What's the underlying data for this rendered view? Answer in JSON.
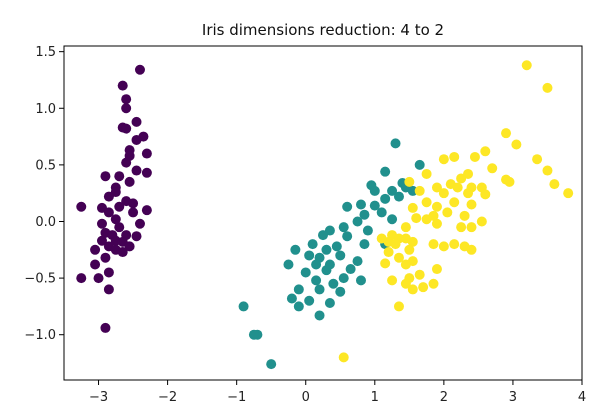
{
  "chart_data": {
    "type": "scatter",
    "title": "Iris dimensions reduction: 4 to 2",
    "xlabel": "",
    "ylabel": "",
    "xlim": [
      -3.5,
      4.0
    ],
    "ylim": [
      -1.4,
      1.55
    ],
    "xticks": [
      -3,
      -2,
      -1,
      0,
      1,
      2,
      3,
      4
    ],
    "xtick_labels": [
      "−3",
      "−2",
      "−1",
      "0",
      "1",
      "2",
      "3",
      "4"
    ],
    "yticks": [
      -1.0,
      -0.5,
      0.0,
      0.5,
      1.0,
      1.5
    ],
    "ytick_labels": [
      "−1.0",
      "−0.5",
      "0.0",
      "0.5",
      "1.0",
      "1.5"
    ],
    "grid": false,
    "legend": "none",
    "series": [
      {
        "color": "#440154",
        "points": [
          [
            -2.4,
            1.34
          ],
          [
            -2.65,
            1.2
          ],
          [
            -2.6,
            1.08
          ],
          [
            -2.6,
            1.0
          ],
          [
            -2.45,
            0.88
          ],
          [
            -2.65,
            0.83
          ],
          [
            -2.6,
            0.82
          ],
          [
            -2.35,
            0.75
          ],
          [
            -2.45,
            0.72
          ],
          [
            -2.55,
            0.63
          ],
          [
            -2.3,
            0.6
          ],
          [
            -2.55,
            0.58
          ],
          [
            -2.6,
            0.52
          ],
          [
            -2.45,
            0.45
          ],
          [
            -2.3,
            0.43
          ],
          [
            -2.9,
            0.4
          ],
          [
            -2.7,
            0.4
          ],
          [
            -2.55,
            0.35
          ],
          [
            -2.75,
            0.3
          ],
          [
            -2.75,
            0.26
          ],
          [
            -2.85,
            0.22
          ],
          [
            -2.6,
            0.18
          ],
          [
            -2.5,
            0.16
          ],
          [
            -2.95,
            0.12
          ],
          [
            -2.7,
            0.13
          ],
          [
            -3.25,
            0.13
          ],
          [
            -2.85,
            0.08
          ],
          [
            -2.5,
            0.08
          ],
          [
            -2.3,
            0.1
          ],
          [
            -2.75,
            0.02
          ],
          [
            -2.95,
            -0.02
          ],
          [
            -2.4,
            -0.02
          ],
          [
            -2.7,
            -0.05
          ],
          [
            -2.9,
            -0.1
          ],
          [
            -2.8,
            -0.12
          ],
          [
            -2.6,
            -0.12
          ],
          [
            -2.45,
            -0.13
          ],
          [
            -2.75,
            -0.17
          ],
          [
            -2.65,
            -0.18
          ],
          [
            -2.95,
            -0.17
          ],
          [
            -2.85,
            -0.22
          ],
          [
            -2.55,
            -0.22
          ],
          [
            -2.75,
            -0.25
          ],
          [
            -2.65,
            -0.27
          ],
          [
            -3.05,
            -0.25
          ],
          [
            -2.9,
            -0.32
          ],
          [
            -3.05,
            -0.38
          ],
          [
            -2.85,
            -0.45
          ],
          [
            -3.25,
            -0.5
          ],
          [
            -3.0,
            -0.5
          ],
          [
            -2.85,
            -0.6
          ],
          [
            -2.9,
            -0.94
          ]
        ]
      },
      {
        "color": "#21908d",
        "points": [
          [
            1.3,
            0.69
          ],
          [
            1.65,
            0.5
          ],
          [
            1.15,
            0.44
          ],
          [
            1.4,
            0.34
          ],
          [
            0.95,
            0.32
          ],
          [
            1.45,
            0.3
          ],
          [
            1.0,
            0.27
          ],
          [
            1.25,
            0.27
          ],
          [
            1.35,
            0.22
          ],
          [
            1.15,
            0.2
          ],
          [
            1.55,
            0.27
          ],
          [
            0.8,
            0.15
          ],
          [
            1.0,
            0.14
          ],
          [
            1.1,
            0.08
          ],
          [
            0.6,
            0.13
          ],
          [
            0.85,
            0.06
          ],
          [
            0.75,
            0.0
          ],
          [
            1.25,
            0.02
          ],
          [
            0.55,
            -0.05
          ],
          [
            0.35,
            -0.08
          ],
          [
            0.9,
            -0.08
          ],
          [
            0.25,
            -0.12
          ],
          [
            0.6,
            -0.13
          ],
          [
            1.15,
            -0.2
          ],
          [
            0.45,
            -0.22
          ],
          [
            0.85,
            -0.2
          ],
          [
            0.1,
            -0.2
          ],
          [
            0.3,
            -0.25
          ],
          [
            -0.15,
            -0.25
          ],
          [
            0.05,
            -0.3
          ],
          [
            0.2,
            -0.32
          ],
          [
            0.5,
            -0.3
          ],
          [
            0.15,
            -0.38
          ],
          [
            0.35,
            -0.38
          ],
          [
            0.75,
            -0.35
          ],
          [
            -0.25,
            -0.38
          ],
          [
            0.0,
            -0.45
          ],
          [
            0.3,
            -0.43
          ],
          [
            0.65,
            -0.42
          ],
          [
            0.55,
            -0.5
          ],
          [
            0.15,
            -0.52
          ],
          [
            0.4,
            -0.55
          ],
          [
            0.8,
            -0.52
          ],
          [
            -0.1,
            -0.6
          ],
          [
            0.2,
            -0.6
          ],
          [
            0.5,
            -0.62
          ],
          [
            -0.2,
            -0.68
          ],
          [
            0.05,
            -0.7
          ],
          [
            0.35,
            -0.72
          ],
          [
            -0.1,
            -0.75
          ],
          [
            0.2,
            -0.83
          ],
          [
            -0.9,
            -0.75
          ],
          [
            -0.7,
            -1.0
          ],
          [
            -0.75,
            -1.0
          ],
          [
            -0.5,
            -1.26
          ]
        ]
      },
      {
        "color": "#fde725",
        "points": [
          [
            3.2,
            1.38
          ],
          [
            3.5,
            1.18
          ],
          [
            2.9,
            0.78
          ],
          [
            3.05,
            0.68
          ],
          [
            2.6,
            0.62
          ],
          [
            2.15,
            0.57
          ],
          [
            2.45,
            0.57
          ],
          [
            2.0,
            0.55
          ],
          [
            3.35,
            0.55
          ],
          [
            2.7,
            0.47
          ],
          [
            3.5,
            0.45
          ],
          [
            1.75,
            0.42
          ],
          [
            2.35,
            0.42
          ],
          [
            2.25,
            0.38
          ],
          [
            2.9,
            0.37
          ],
          [
            2.95,
            0.35
          ],
          [
            1.5,
            0.35
          ],
          [
            2.1,
            0.33
          ],
          [
            1.9,
            0.3
          ],
          [
            2.2,
            0.3
          ],
          [
            2.4,
            0.3
          ],
          [
            2.55,
            0.3
          ],
          [
            3.6,
            0.33
          ],
          [
            1.65,
            0.27
          ],
          [
            2.0,
            0.25
          ],
          [
            2.35,
            0.25
          ],
          [
            2.6,
            0.24
          ],
          [
            3.8,
            0.25
          ],
          [
            1.75,
            0.17
          ],
          [
            2.15,
            0.17
          ],
          [
            2.4,
            0.15
          ],
          [
            1.9,
            0.13
          ],
          [
            1.55,
            0.12
          ],
          [
            2.05,
            0.08
          ],
          [
            1.85,
            0.05
          ],
          [
            2.3,
            0.05
          ],
          [
            1.6,
            0.03
          ],
          [
            1.75,
            0.02
          ],
          [
            2.55,
            0.0
          ],
          [
            1.9,
            -0.02
          ],
          [
            1.45,
            -0.05
          ],
          [
            2.25,
            -0.05
          ],
          [
            2.4,
            -0.05
          ],
          [
            1.25,
            -0.12
          ],
          [
            1.1,
            -0.15
          ],
          [
            1.35,
            -0.15
          ],
          [
            1.45,
            -0.15
          ],
          [
            1.2,
            -0.18
          ],
          [
            1.55,
            -0.18
          ],
          [
            1.3,
            -0.2
          ],
          [
            1.85,
            -0.2
          ],
          [
            2.15,
            -0.2
          ],
          [
            2.3,
            -0.22
          ],
          [
            2.0,
            -0.22
          ],
          [
            1.5,
            -0.25
          ],
          [
            1.2,
            -0.27
          ],
          [
            2.4,
            -0.25
          ],
          [
            1.35,
            -0.32
          ],
          [
            1.55,
            -0.35
          ],
          [
            1.15,
            -0.37
          ],
          [
            1.45,
            -0.38
          ],
          [
            1.9,
            -0.42
          ],
          [
            1.65,
            -0.47
          ],
          [
            1.5,
            -0.5
          ],
          [
            1.25,
            -0.52
          ],
          [
            1.45,
            -0.55
          ],
          [
            1.85,
            -0.55
          ],
          [
            1.7,
            -0.58
          ],
          [
            1.55,
            -0.6
          ],
          [
            1.35,
            -0.75
          ],
          [
            0.55,
            -1.2
          ]
        ]
      }
    ]
  }
}
